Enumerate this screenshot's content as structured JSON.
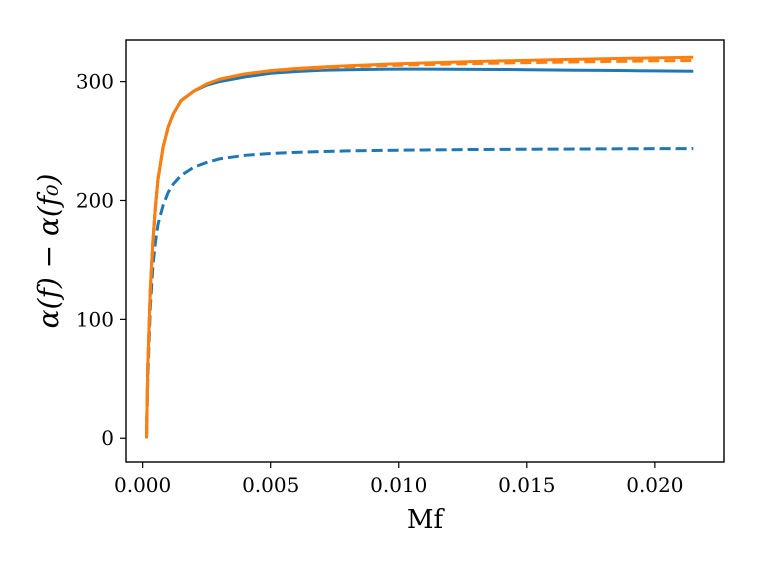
{
  "chart_data": {
    "type": "line",
    "title": "",
    "xlabel": "Mf",
    "ylabel": "α(f) − α(f₀)",
    "xlim": [
      -0.00065,
      0.0227
    ],
    "ylim": [
      -20,
      335
    ],
    "xticks": [
      0.0,
      0.005,
      0.01,
      0.015,
      0.02
    ],
    "xtick_labels": [
      "0.000",
      "0.005",
      "0.010",
      "0.015",
      "0.020"
    ],
    "yticks": [
      0,
      100,
      200,
      300
    ],
    "ytick_labels": [
      "0",
      "100",
      "200",
      "300"
    ],
    "grid": false,
    "legend": "none",
    "series": [
      {
        "color": "#1f77b4",
        "style": "solid",
        "x": [
          0.00015,
          0.0002,
          0.0003,
          0.0004,
          0.0005,
          0.0006,
          0.0008,
          0.001,
          0.0012,
          0.0015,
          0.002,
          0.0025,
          0.003,
          0.004,
          0.005,
          0.006,
          0.007,
          0.008,
          0.009,
          0.01,
          0.011,
          0.012,
          0.013,
          0.014,
          0.015,
          0.016,
          0.017,
          0.018,
          0.019,
          0.02,
          0.021,
          0.0215
        ],
        "y": [
          0,
          60,
          125,
          165,
          195,
          218,
          245,
          262,
          273,
          284,
          292,
          297,
          300,
          304,
          307,
          308.5,
          309.5,
          310,
          310.3,
          310.5,
          310.5,
          310.4,
          310.3,
          310.2,
          310,
          309.8,
          309.6,
          309.4,
          309.2,
          309,
          308.8,
          308.7
        ]
      },
      {
        "color": "#1f77b4",
        "style": "dashed",
        "x": [
          0.00015,
          0.0002,
          0.0003,
          0.0004,
          0.0005,
          0.0006,
          0.0008,
          0.001,
          0.0012,
          0.0015,
          0.002,
          0.0025,
          0.003,
          0.004,
          0.005,
          0.006,
          0.007,
          0.008,
          0.009,
          0.01,
          0.011,
          0.012,
          0.013,
          0.014,
          0.015,
          0.016,
          0.017,
          0.018,
          0.019,
          0.02,
          0.021,
          0.0215
        ],
        "y": [
          0,
          50,
          110,
          145,
          165,
          180,
          196,
          207,
          214,
          221,
          228,
          232,
          235,
          238,
          239.5,
          240.5,
          241.2,
          241.7,
          242,
          242.3,
          242.5,
          242.7,
          242.9,
          243,
          243.1,
          243.2,
          243.3,
          243.4,
          243.5,
          243.6,
          243.6,
          243.7
        ]
      },
      {
        "color": "#ff7f0e",
        "style": "dashed",
        "x": [
          0.00015,
          0.0002,
          0.0003,
          0.0004,
          0.0005,
          0.0006,
          0.0008,
          0.001,
          0.0012,
          0.0015,
          0.002,
          0.0025,
          0.003,
          0.004,
          0.005,
          0.006,
          0.007,
          0.008,
          0.009,
          0.01,
          0.011,
          0.012,
          0.013,
          0.014,
          0.015,
          0.016,
          0.017,
          0.018,
          0.019,
          0.02,
          0.021,
          0.0215
        ],
        "y": [
          0,
          60,
          125,
          165,
          195,
          218,
          245,
          262,
          273,
          284,
          292,
          298,
          302,
          306.5,
          309,
          310.5,
          311.5,
          312.5,
          313.2,
          313.8,
          314.3,
          314.8,
          315.2,
          315.6,
          316,
          316.3,
          316.6,
          316.9,
          317.2,
          317.5,
          317.7,
          317.8
        ]
      },
      {
        "color": "#ff7f0e",
        "style": "solid",
        "x": [
          0.00015,
          0.0002,
          0.0003,
          0.0004,
          0.0005,
          0.0006,
          0.0008,
          0.001,
          0.0012,
          0.0015,
          0.002,
          0.0025,
          0.003,
          0.004,
          0.005,
          0.006,
          0.007,
          0.008,
          0.009,
          0.01,
          0.011,
          0.012,
          0.013,
          0.014,
          0.015,
          0.016,
          0.017,
          0.018,
          0.019,
          0.02,
          0.021,
          0.0215
        ],
        "y": [
          0,
          60,
          125,
          165,
          195,
          218,
          245,
          262,
          273,
          284,
          292,
          298,
          302,
          306.5,
          309.2,
          311,
          312.3,
          313.3,
          314.2,
          315,
          315.7,
          316.3,
          316.9,
          317.4,
          317.9,
          318.4,
          318.8,
          319.2,
          319.6,
          320,
          320.3,
          320.5
        ]
      }
    ]
  }
}
